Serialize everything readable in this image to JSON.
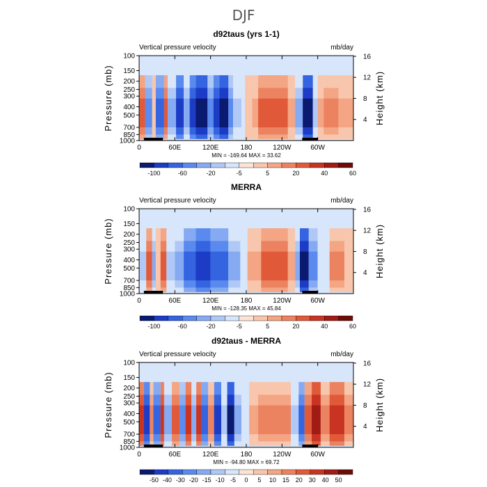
{
  "page_title": "DJF",
  "chart_data": [
    {
      "type": "heatmap",
      "title": "d92taus (yrs 1-1)",
      "subtitle_left": "Vertical pressure velocity",
      "subtitle_right": "mb/day",
      "ylabel": "Pressure (mb)",
      "ylabel_right": "Height (km)",
      "x_ticks": [
        "0",
        "60E",
        "120E",
        "180",
        "120W",
        "60W"
      ],
      "y_ticks": [
        "100",
        "150",
        "200",
        "250",
        "300",
        "400",
        "500",
        "700",
        "850",
        "1000"
      ],
      "y_ticks_right": [
        "16",
        "12",
        "8",
        "4"
      ],
      "stats": "MIN = -169.64   MAX =  33.62",
      "colorbar_labels": [
        "-100",
        "-60",
        "-20",
        "-5",
        "5",
        "20",
        "40",
        "60"
      ],
      "colorbar_colors": [
        "#0a1a70",
        "#1d3cc6",
        "#3564e0",
        "#5a8aee",
        "#86aaf2",
        "#b0c8f6",
        "#d8e6fb",
        "#fbe4d6",
        "#f8c6ac",
        "#f3a584",
        "#ec8360",
        "#e05a3a",
        "#c93422",
        "#a01b14",
        "#6e0c0a"
      ],
      "bands": [
        {
          "lon": [
            0,
            10
          ],
          "level": 4
        },
        {
          "lon": [
            10,
            22
          ],
          "level": -4
        },
        {
          "lon": [
            22,
            28
          ],
          "level": 1
        },
        {
          "lon": [
            28,
            42
          ],
          "level": -5
        },
        {
          "lon": [
            42,
            48
          ],
          "level": 4
        },
        {
          "lon": [
            48,
            62
          ],
          "level": -3
        },
        {
          "lon": [
            62,
            75
          ],
          "level": -6
        },
        {
          "lon": [
            75,
            85
          ],
          "level": -3
        },
        {
          "lon": [
            85,
            95
          ],
          "level": -6
        },
        {
          "lon": [
            95,
            115
          ],
          "level": -7
        },
        {
          "lon": [
            115,
            125
          ],
          "level": -4
        },
        {
          "lon": [
            125,
            135
          ],
          "level": -6
        },
        {
          "lon": [
            135,
            150
          ],
          "level": -7
        },
        {
          "lon": [
            150,
            158
          ],
          "level": -4
        },
        {
          "lon": [
            158,
            172
          ],
          "level": -2
        },
        {
          "lon": [
            172,
            178
          ],
          "level": -1
        },
        {
          "lon": [
            178,
            190
          ],
          "level": 1
        },
        {
          "lon": [
            190,
            200
          ],
          "level": 2
        },
        {
          "lon": [
            200,
            250
          ],
          "level": 4
        },
        {
          "lon": [
            250,
            262
          ],
          "level": 2
        },
        {
          "lon": [
            262,
            275
          ],
          "level": -3
        },
        {
          "lon": [
            275,
            292
          ],
          "level": -7
        },
        {
          "lon": [
            292,
            300
          ],
          "level": -2
        },
        {
          "lon": [
            300,
            310
          ],
          "level": 2
        },
        {
          "lon": [
            310,
            335
          ],
          "level": 3
        },
        {
          "lon": [
            335,
            360
          ],
          "level": 2
        }
      ]
    },
    {
      "type": "heatmap",
      "title": "MERRA",
      "subtitle_left": "Vertical pressure velocity",
      "subtitle_right": "mb/day",
      "ylabel": "Pressure (mb)",
      "ylabel_right": "Height (km)",
      "x_ticks": [
        "0",
        "60E",
        "120E",
        "180",
        "120W",
        "60W"
      ],
      "y_ticks": [
        "100",
        "150",
        "200",
        "250",
        "300",
        "400",
        "500",
        "700",
        "850",
        "1000"
      ],
      "y_ticks_right": [
        "16",
        "12",
        "8",
        "4"
      ],
      "stats": "MIN = -128.35   MAX =  45.84",
      "colorbar_labels": [
        "-100",
        "-60",
        "-20",
        "-5",
        "5",
        "20",
        "40",
        "60"
      ],
      "colorbar_colors": [
        "#0a1a70",
        "#1d3cc6",
        "#3564e0",
        "#5a8aee",
        "#86aaf2",
        "#b0c8f6",
        "#d8e6fb",
        "#fbe4d6",
        "#f8c6ac",
        "#f3a584",
        "#ec8360",
        "#e05a3a",
        "#c93422",
        "#a01b14",
        "#6e0c0a"
      ],
      "bands": [
        {
          "lon": [
            0,
            12
          ],
          "level": -2
        },
        {
          "lon": [
            12,
            22
          ],
          "level": 4
        },
        {
          "lon": [
            22,
            28
          ],
          "level": -3
        },
        {
          "lon": [
            28,
            36
          ],
          "level": 1
        },
        {
          "lon": [
            36,
            46
          ],
          "level": 4
        },
        {
          "lon": [
            46,
            60
          ],
          "level": -2
        },
        {
          "lon": [
            60,
            75
          ],
          "level": -3
        },
        {
          "lon": [
            75,
            95
          ],
          "level": -5
        },
        {
          "lon": [
            95,
            120
          ],
          "level": -6
        },
        {
          "lon": [
            120,
            150
          ],
          "level": -5
        },
        {
          "lon": [
            150,
            170
          ],
          "level": -3
        },
        {
          "lon": [
            170,
            182
          ],
          "level": -1
        },
        {
          "lon": [
            182,
            205
          ],
          "level": 2
        },
        {
          "lon": [
            205,
            250
          ],
          "level": 4
        },
        {
          "lon": [
            250,
            262
          ],
          "level": 2
        },
        {
          "lon": [
            262,
            270
          ],
          "level": -3
        },
        {
          "lon": [
            270,
            285
          ],
          "level": -7
        },
        {
          "lon": [
            285,
            300
          ],
          "level": -4
        },
        {
          "lon": [
            300,
            320
          ],
          "level": -1
        },
        {
          "lon": [
            320,
            345
          ],
          "level": 3
        },
        {
          "lon": [
            345,
            360
          ],
          "level": 1
        }
      ]
    },
    {
      "type": "heatmap",
      "title": "d92taus - MERRA",
      "subtitle_left": "Vertical pressure velocity",
      "subtitle_right": "mb/day",
      "ylabel": "Pressure (mb)",
      "ylabel_right": "Height (km)",
      "x_ticks": [
        "0",
        "60E",
        "120E",
        "180",
        "120W",
        "60W"
      ],
      "y_ticks": [
        "100",
        "150",
        "200",
        "250",
        "300",
        "400",
        "500",
        "700",
        "850",
        "1000"
      ],
      "y_ticks_right": [
        "16",
        "12",
        "8",
        "4"
      ],
      "stats": "MIN = -94.80   MAX =  69.72",
      "colorbar_labels": [
        "-50",
        "-40",
        "-30",
        "-20",
        "-15",
        "-10",
        "-5",
        "0",
        "5",
        "10",
        "15",
        "20",
        "30",
        "40",
        "50"
      ],
      "colorbar_colors": [
        "#0a1a70",
        "#1d3cc6",
        "#3564e0",
        "#5a8aee",
        "#86aaf2",
        "#b0c8f6",
        "#d8e6fb",
        "#fbe4d6",
        "#f8c6ac",
        "#f3a584",
        "#ec8360",
        "#e05a3a",
        "#c93422",
        "#a01b14",
        "#6e0c0a"
      ],
      "bands": [
        {
          "lon": [
            0,
            8
          ],
          "level": 5
        },
        {
          "lon": [
            8,
            18
          ],
          "level": -6
        },
        {
          "lon": [
            18,
            24
          ],
          "level": 3
        },
        {
          "lon": [
            24,
            36
          ],
          "level": -5
        },
        {
          "lon": [
            36,
            42
          ],
          "level": 5
        },
        {
          "lon": [
            42,
            55
          ],
          "level": -3
        },
        {
          "lon": [
            55,
            68
          ],
          "level": 4
        },
        {
          "lon": [
            68,
            78
          ],
          "level": -4
        },
        {
          "lon": [
            78,
            88
          ],
          "level": 5
        },
        {
          "lon": [
            88,
            96
          ],
          "level": -3
        },
        {
          "lon": [
            96,
            104
          ],
          "level": 5
        },
        {
          "lon": [
            104,
            116
          ],
          "level": -5
        },
        {
          "lon": [
            116,
            126
          ],
          "level": 3
        },
        {
          "lon": [
            126,
            138
          ],
          "level": -6
        },
        {
          "lon": [
            138,
            148
          ],
          "level": -2
        },
        {
          "lon": [
            148,
            160
          ],
          "level": -7
        },
        {
          "lon": [
            160,
            172
          ],
          "level": -3
        },
        {
          "lon": [
            172,
            185
          ],
          "level": -1
        },
        {
          "lon": [
            185,
            200
          ],
          "level": 2
        },
        {
          "lon": [
            200,
            255
          ],
          "level": 3
        },
        {
          "lon": [
            255,
            268
          ],
          "level": -2
        },
        {
          "lon": [
            268,
            278
          ],
          "level": -5
        },
        {
          "lon": [
            278,
            290
          ],
          "level": 4
        },
        {
          "lon": [
            290,
            305
          ],
          "level": 6
        },
        {
          "lon": [
            305,
            320
          ],
          "level": 3
        },
        {
          "lon": [
            320,
            345
          ],
          "level": 5
        },
        {
          "lon": [
            345,
            360
          ],
          "level": 3
        }
      ]
    }
  ]
}
